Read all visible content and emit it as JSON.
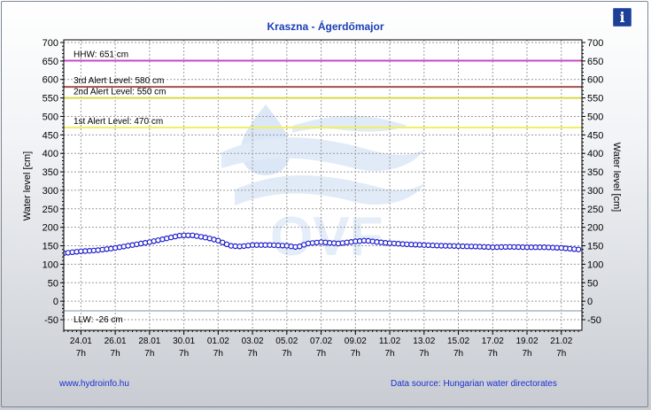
{
  "header": {
    "info_icon": "info-icon",
    "info_label": "i"
  },
  "footer": {
    "website": "www.hydroinfo.hu",
    "source": "Data source: Hungarian water directorates"
  },
  "watermark": {
    "text": "OVF"
  },
  "colors": {
    "title": "#1a3fb5",
    "series_line": "#1c1ccc",
    "hhw": "#cc44cc",
    "alert3": "#a05050",
    "alert2": "#d8d84a",
    "alert1": "#f0f060",
    "llw": "#c0c8d0"
  },
  "chart_data": {
    "type": "line",
    "title": "Kraszna - Ágerdőmajor",
    "ylabel": "Water level [cm]",
    "ylabel_right": "Water level [cm]",
    "ylim": [
      -50,
      700
    ],
    "yticks": [
      700,
      650,
      600,
      550,
      500,
      450,
      400,
      350,
      300,
      250,
      200,
      150,
      100,
      50,
      0,
      -50
    ],
    "grid": true,
    "xlim_days": [
      0,
      30.2
    ],
    "xticks": [
      {
        "date": "24.01",
        "hour": "7h",
        "day": 1
      },
      {
        "date": "26.01",
        "hour": "7h",
        "day": 3
      },
      {
        "date": "28.01",
        "hour": "7h",
        "day": 5
      },
      {
        "date": "30.01",
        "hour": "7h",
        "day": 7
      },
      {
        "date": "01.02",
        "hour": "7h",
        "day": 9
      },
      {
        "date": "03.02",
        "hour": "7h",
        "day": 11
      },
      {
        "date": "05.02",
        "hour": "7h",
        "day": 13
      },
      {
        "date": "07.02",
        "hour": "7h",
        "day": 15
      },
      {
        "date": "09.02",
        "hour": "7h",
        "day": 17
      },
      {
        "date": "11.02",
        "hour": "7h",
        "day": 19
      },
      {
        "date": "13.02",
        "hour": "7h",
        "day": 21
      },
      {
        "date": "15.02",
        "hour": "7h",
        "day": 23
      },
      {
        "date": "17.02",
        "hour": "7h",
        "day": 25
      },
      {
        "date": "19.02",
        "hour": "7h",
        "day": 27
      },
      {
        "date": "21.02",
        "hour": "7h",
        "day": 29
      }
    ],
    "thresholds": [
      {
        "label": "HHW: 651 cm",
        "value": 651,
        "color": "#cc44cc"
      },
      {
        "label": "3rd Alert Level: 580 cm",
        "value": 580,
        "color": "#a05050"
      },
      {
        "label": "2nd Alert Level: 550 cm",
        "value": 550,
        "color": "#d8d84a"
      },
      {
        "label": "1st Alert Level: 470 cm",
        "value": 470,
        "color": "#f0f060"
      },
      {
        "label": "LLW: -26 cm",
        "value": -26,
        "color": "#c0c8d0"
      }
    ],
    "series": [
      {
        "values": [
          [
            0,
            130
          ],
          [
            1,
            135
          ],
          [
            2,
            138
          ],
          [
            3,
            144
          ],
          [
            4,
            152
          ],
          [
            5,
            160
          ],
          [
            6,
            170
          ],
          [
            6.8,
            178
          ],
          [
            7.5,
            178
          ],
          [
            8.3,
            172
          ],
          [
            9,
            164
          ],
          [
            9.7,
            150
          ],
          [
            10.3,
            148
          ],
          [
            11,
            152
          ],
          [
            12,
            152
          ],
          [
            13,
            150
          ],
          [
            13.6,
            146
          ],
          [
            14.2,
            156
          ],
          [
            15,
            160
          ],
          [
            16,
            156
          ],
          [
            17,
            162
          ],
          [
            17.6,
            164
          ],
          [
            18.3,
            160
          ],
          [
            19,
            157
          ],
          [
            20,
            154
          ],
          [
            21,
            152
          ],
          [
            22,
            150
          ],
          [
            23,
            149
          ],
          [
            24,
            148
          ],
          [
            25,
            146
          ],
          [
            26,
            147
          ],
          [
            27,
            146
          ],
          [
            28,
            146
          ],
          [
            29,
            144
          ],
          [
            30,
            140
          ]
        ]
      }
    ]
  }
}
